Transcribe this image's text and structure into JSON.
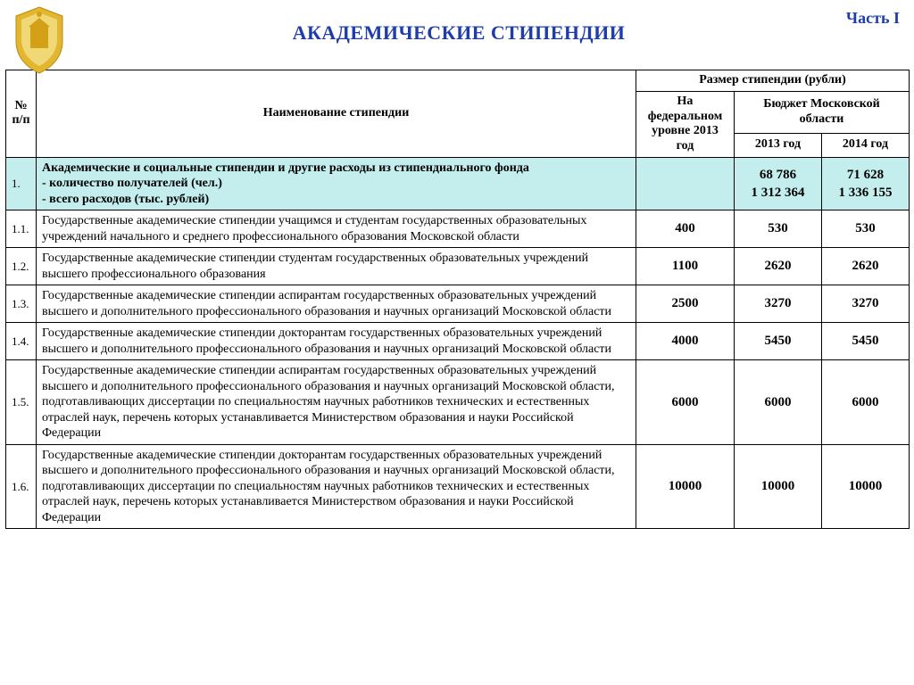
{
  "page": {
    "title": "АКАДЕМИЧЕСКИЕ СТИПЕНДИИ",
    "part_label": "Часть I",
    "title_color": "#1f3da8",
    "background_color": "#ffffff"
  },
  "table": {
    "highlight_color": "#c4eeee",
    "border_color": "#000000",
    "columns": {
      "num_header": "№ п/п",
      "name_header": "Наименование стипендии",
      "size_group_header": "Размер стипендии (рубли)",
      "federal_header": "На федеральном уровне 2013 год",
      "region_group_header": "Бюджет Московской области",
      "year_2013_header": "2013 год",
      "year_2014_header": "2014 год"
    },
    "rows": [
      {
        "num": "1.",
        "name": "Академические и социальные стипендии и другие расходы из стипендиального фонда\n- количество получателей (чел.)\n- всего расходов (тыс. рублей)",
        "federal": "",
        "y2013": "68 786\n1 312 364",
        "y2014": "71 628\n1 336 155",
        "highlight": true
      },
      {
        "num": "1.1.",
        "name": "Государственные академические стипендии учащимся и студентам государственных образовательных учреждений начального и среднего профессионального образования Московской области",
        "federal": "400",
        "y2013": "530",
        "y2014": "530",
        "highlight": false
      },
      {
        "num": "1.2.",
        "name": "Государственные академические стипендии студентам государственных образовательных учреждений высшего профессионального образования",
        "federal": "1100",
        "y2013": "2620",
        "y2014": "2620",
        "highlight": false
      },
      {
        "num": "1.3.",
        "name": "Государственные академические стипендии аспирантам государственных образовательных учреждений высшего и дополнительного профессионального образования и научных организаций Московской области",
        "federal": "2500",
        "y2013": "3270",
        "y2014": "3270",
        "highlight": false
      },
      {
        "num": "1.4.",
        "name": "Государственные академические стипендии докторантам государственных образовательных учреждений высшего и дополнительного профессионального образования и научных организаций Московской области",
        "federal": "4000",
        "y2013": "5450",
        "y2014": "5450",
        "highlight": false
      },
      {
        "num": "1.5.",
        "name": "Государственные академические стипендии аспирантам государственных образовательных учреждений высшего и дополнительного профессионального образования и научных организаций Московской области,  подготавливающих диссертации по специальностям научных работников технических и естественных отраслей наук, перечень которых устанавливается Министерством образования и науки Российской Федерации",
        "federal": "6000",
        "y2013": "6000",
        "y2014": "6000",
        "highlight": false
      },
      {
        "num": "1.6.",
        "name": "Государственные академические стипендии докторантам государственных образовательных учреждений высшего и дополнительного профессионального образования и научных организаций Московской области,  подготавливающих диссертации по специальностям научных работников технических и естественных отраслей наук, перечень которых устанавливается Министерством образования и науки Российской Федерации",
        "federal": "10000",
        "y2013": "10000",
        "y2014": "10000",
        "highlight": false
      }
    ]
  }
}
